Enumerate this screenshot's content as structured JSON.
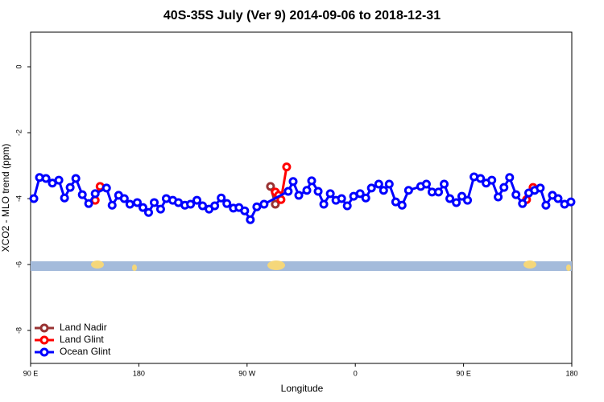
{
  "chart_data": {
    "type": "line",
    "title": "40S-35S July (Ver 9)   2014-09-06 to 2018-12-31",
    "x_label": "Longitude",
    "y_label": "XCO2 - MLO trend (ppm)",
    "xlim": [
      90,
      540
    ],
    "ylim": [
      -9,
      1.05
    ],
    "xticks": [
      {
        "value": 90,
        "label": "90 E"
      },
      180,
      {
        "value": 270,
        "label": "90 W"
      },
      {
        "value": 360,
        "label": "0"
      },
      {
        "value": 450,
        "label": "90 E"
      },
      {
        "value": 540,
        "label": "180"
      }
    ],
    "yticks": [
      0,
      -2,
      -4,
      -6,
      -8
    ],
    "legend": "bottom-left",
    "series": [
      {
        "name": "Land Nadir",
        "color": "#993333",
        "x": [
          289.5,
          293.5
        ],
        "values": [
          -3.63,
          -4.17
        ]
      },
      {
        "name": "Land Glint",
        "color": "#ff0000",
        "x": [
          143.7,
          147.8,
          null,
          293.5,
          296.2,
          298.2,
          302.9,
          null,
          502.4,
          507.8
        ],
        "values": [
          -4.05,
          -3.63,
          null,
          -3.8,
          -3.9,
          -4.03,
          -3.04,
          null,
          -4.03,
          -3.66
        ]
      },
      {
        "name": "Ocean Glint",
        "color": "#0000ff",
        "x": [
          92.7,
          97.4,
          102.8,
          108.1,
          113.5,
          118.2,
          122.9,
          127.6,
          133,
          138.3,
          143.7,
          153.1,
          157.8,
          163.2,
          167.9,
          172.6,
          178.7,
          183.4,
          188.1,
          192.8,
          198.1,
          202.8,
          208.2,
          212.9,
          218.3,
          223,
          228.3,
          233,
          238.4,
          243.1,
          248.5,
          253.2,
          258.6,
          263.3,
          268,
          272.7,
          278.1,
          284.1,
          304.2,
          308.3,
          313,
          319.7,
          323.7,
          329.1,
          333.8,
          339.2,
          343.9,
          348.6,
          353.3,
          358.6,
          364,
          368.7,
          373.4,
          379.5,
          383.5,
          388.2,
          393.6,
          398.9,
          404.3,
          414.4,
          419.1,
          423.8,
          429.2,
          433.9,
          438.6,
          444,
          448.6,
          453.3,
          458.7,
          464.1,
          468.8,
          473.5,
          478.8,
          483.6,
          488.3,
          493.6,
          499,
          504.2,
          509.1,
          513.8,
          518.5,
          523.9,
          528.6,
          534,
          539.3
        ],
        "values": [
          -4.0,
          -3.36,
          -3.39,
          -3.53,
          -3.44,
          -3.98,
          -3.66,
          -3.39,
          -3.88,
          -4.15,
          -3.85,
          -3.68,
          -4.2,
          -3.9,
          -4.0,
          -4.17,
          -4.12,
          -4.27,
          -4.42,
          -4.12,
          -4.32,
          -4.0,
          -4.05,
          -4.12,
          -4.2,
          -4.17,
          -4.05,
          -4.22,
          -4.32,
          -4.22,
          -3.98,
          -4.15,
          -4.29,
          -4.27,
          -4.37,
          -4.64,
          -4.25,
          -4.17,
          -3.78,
          -3.48,
          -3.9,
          -3.75,
          -3.46,
          -3.78,
          -4.17,
          -3.85,
          -4.05,
          -4.0,
          -4.22,
          -3.93,
          -3.85,
          -3.98,
          -3.68,
          -3.56,
          -3.75,
          -3.56,
          -4.1,
          -4.2,
          -3.75,
          -3.63,
          -3.56,
          -3.8,
          -3.8,
          -3.56,
          -4.0,
          -4.12,
          -3.93,
          -4.05,
          -3.34,
          -3.39,
          -3.53,
          -3.44,
          -3.95,
          -3.66,
          -3.36,
          -3.88,
          -4.15,
          -3.83,
          -3.75,
          -3.68,
          -4.2,
          -3.9,
          -4.0,
          -4.17,
          -4.1
        ]
      }
    ]
  }
}
